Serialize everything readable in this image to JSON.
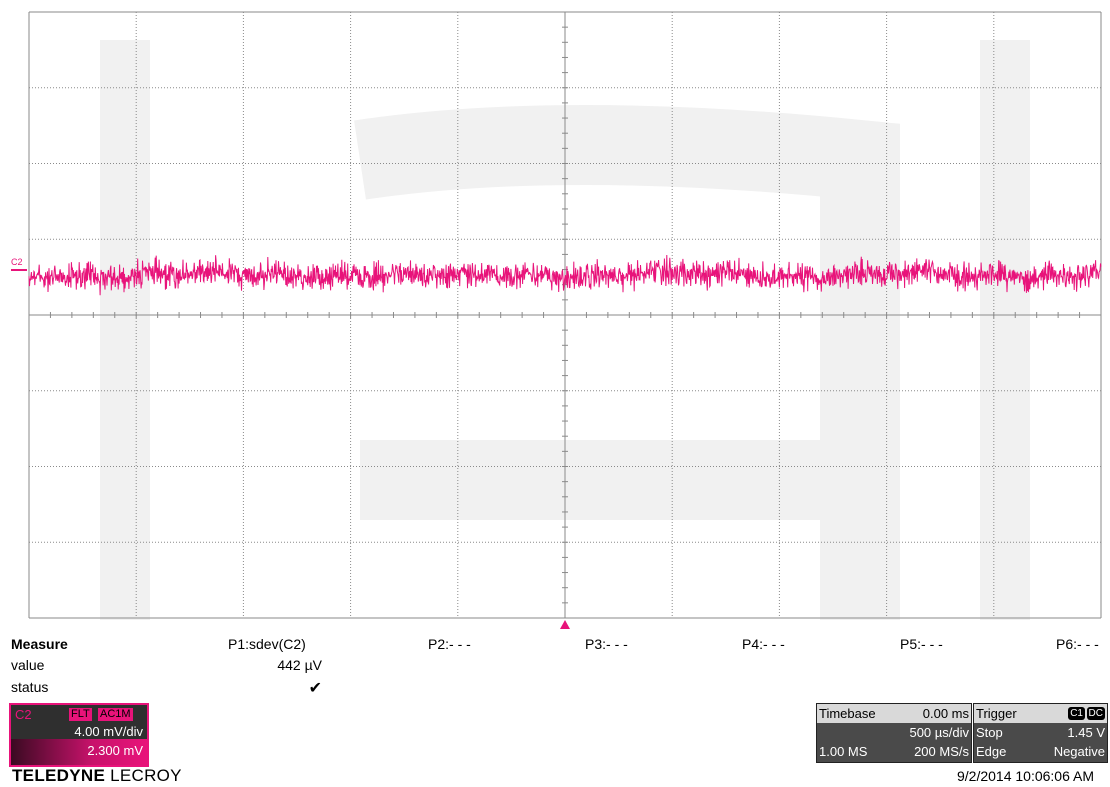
{
  "trace": {
    "channel_label": "C2",
    "color": "#e8137a",
    "trigger_marker_color": "#e8137a"
  },
  "grid": {
    "divisions_x": 10,
    "divisions_y": 8,
    "line_color": "#8a8a8a"
  },
  "measure": {
    "title": "Measure",
    "row_value": "value",
    "row_status": "status",
    "params": [
      {
        "name": "P1:sdev(C2)",
        "value": "442 µV",
        "status": "✔"
      },
      {
        "name": "P2:- - -"
      },
      {
        "name": "P3:- - -"
      },
      {
        "name": "P4:- - -"
      },
      {
        "name": "P5:- - -"
      },
      {
        "name": "P6:- - -"
      }
    ]
  },
  "channel_descriptor": {
    "name": "C2",
    "tags": [
      "FLT",
      "AC1M"
    ],
    "vdiv": "4.00 mV/div",
    "offset": "2.300 mV"
  },
  "timebase": {
    "label": "Timebase",
    "delay": "0.00 ms",
    "tdiv": "500 µs/div",
    "samples": "1.00 MS",
    "rate": "200 MS/s"
  },
  "trigger": {
    "label": "Trigger",
    "source": "C1",
    "coupling": "DC",
    "mode": "Stop",
    "level": "1.45 V",
    "type": "Edge",
    "slope": "Negative"
  },
  "brand": {
    "bold": "TELEDYNE",
    "light": " LECROY"
  },
  "datetime": "9/2/2014 10:06:06 AM"
}
